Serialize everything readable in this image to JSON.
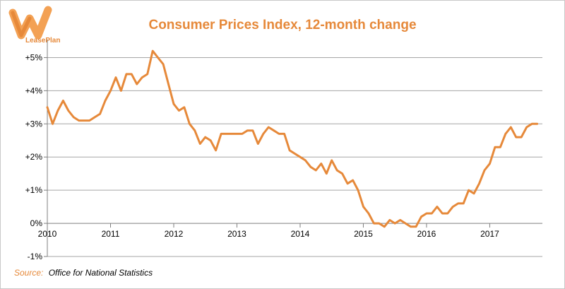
{
  "brand": {
    "name": "LeasePlan",
    "color": "#e6893a"
  },
  "chart_data": {
    "type": "line",
    "title": "Consumer Prices Index, 12-month change",
    "xlabel": "",
    "ylabel": "",
    "xlim": [
      2010,
      2017.833
    ],
    "ylim": [
      -1,
      5.5
    ],
    "x_ticks": [
      {
        "value": 2010,
        "label": "2010"
      },
      {
        "value": 2011,
        "label": "2011"
      },
      {
        "value": 2012,
        "label": "2012"
      },
      {
        "value": 2013,
        "label": "2013"
      },
      {
        "value": 2014,
        "label": "2014"
      },
      {
        "value": 2015,
        "label": "2015"
      },
      {
        "value": 2016,
        "label": "2016"
      },
      {
        "value": 2017,
        "label": "2017"
      }
    ],
    "y_ticks": [
      {
        "value": 5,
        "label": "+5%"
      },
      {
        "value": 4,
        "label": "+4%"
      },
      {
        "value": 3,
        "label": "+3%"
      },
      {
        "value": 2,
        "label": "+2%"
      },
      {
        "value": 1,
        "label": "+1%"
      },
      {
        "value": 0,
        "label": "0%"
      },
      {
        "value": -1,
        "label": "-1%"
      }
    ],
    "grid": true,
    "series": [
      {
        "color": "#e6893a",
        "start_year": 2010,
        "interval": "monthly",
        "values": [
          3.5,
          3.0,
          3.4,
          3.7,
          3.4,
          3.2,
          3.1,
          3.1,
          3.1,
          3.2,
          3.3,
          3.7,
          4.0,
          4.4,
          4.0,
          4.5,
          4.5,
          4.2,
          4.4,
          4.5,
          5.2,
          5.0,
          4.8,
          4.2,
          3.6,
          3.4,
          3.5,
          3.0,
          2.8,
          2.4,
          2.6,
          2.5,
          2.2,
          2.7,
          2.7,
          2.7,
          2.7,
          2.7,
          2.8,
          2.8,
          2.4,
          2.7,
          2.9,
          2.8,
          2.7,
          2.7,
          2.2,
          2.1,
          2.0,
          1.9,
          1.7,
          1.6,
          1.8,
          1.5,
          1.9,
          1.6,
          1.5,
          1.2,
          1.3,
          1.0,
          0.5,
          0.3,
          0.0,
          0.0,
          -0.1,
          0.1,
          0.0,
          0.1,
          0.0,
          -0.1,
          -0.1,
          0.2,
          0.3,
          0.3,
          0.5,
          0.3,
          0.3,
          0.5,
          0.6,
          0.6,
          1.0,
          0.9,
          1.2,
          1.6,
          1.8,
          2.3,
          2.3,
          2.7,
          2.9,
          2.6,
          2.6,
          2.9,
          3.0,
          3.0
        ]
      }
    ]
  },
  "source": {
    "label": "Source:",
    "text": "Office for National Statistics"
  }
}
